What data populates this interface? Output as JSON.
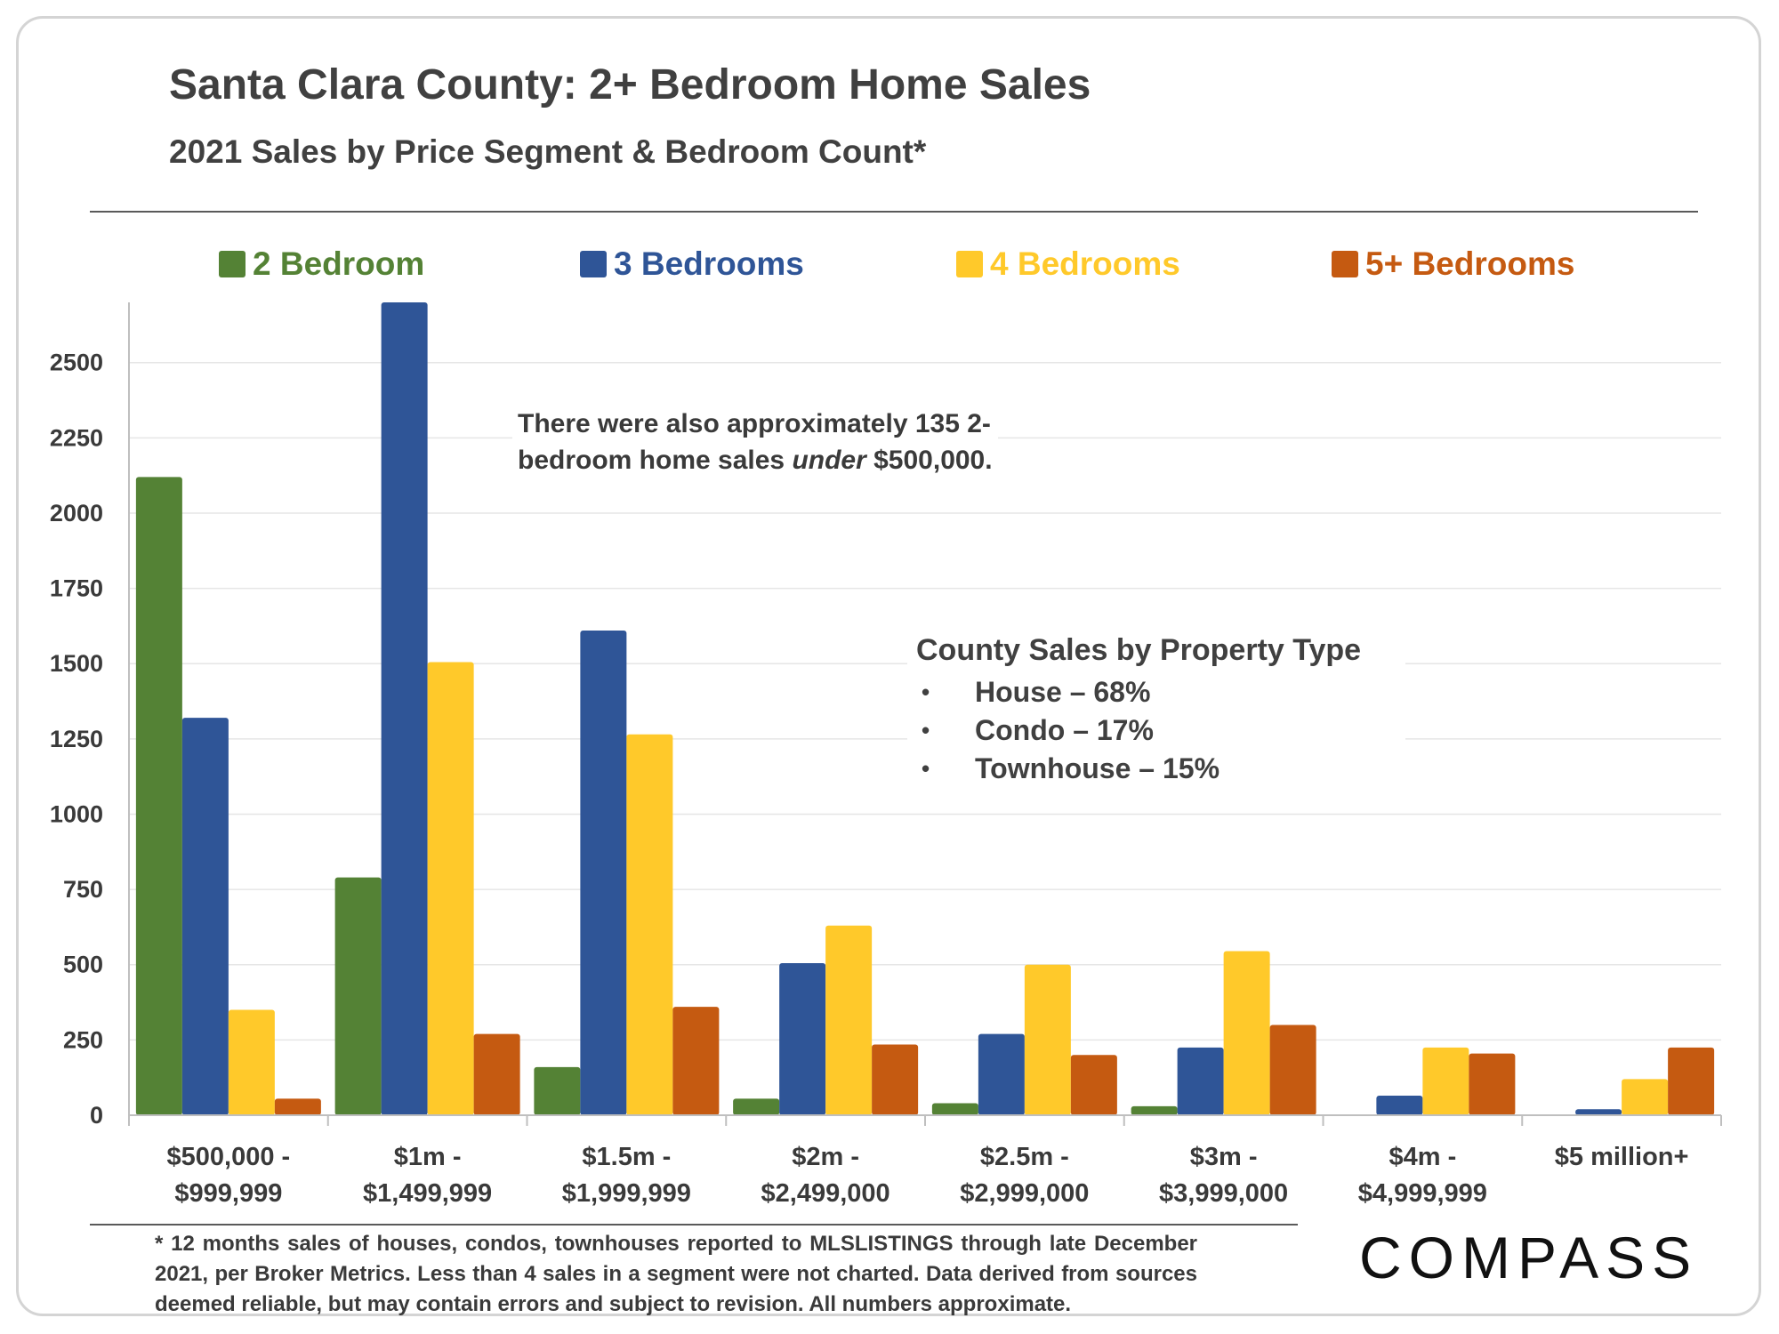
{
  "header": {
    "title": "Santa Clara County: 2+ Bedroom Home Sales",
    "subtitle": "2021 Sales by Price Segment & Bedroom Count*"
  },
  "chart_data": {
    "type": "bar",
    "title": "Santa Clara County: 2+ Bedroom Home Sales",
    "subtitle": "2021 Sales by Price Segment & Bedroom Count*",
    "categories": [
      [
        "$500,000 -",
        "$999,999"
      ],
      [
        "$1m -",
        "$1,499,999"
      ],
      [
        "$1.5m -",
        "$1,999,999"
      ],
      [
        "$2m -",
        "$2,499,000"
      ],
      [
        "$2.5m -",
        "$2,999,000"
      ],
      [
        "$3m -",
        "$3,999,000"
      ],
      [
        "$4m -",
        "$4,999,999"
      ],
      [
        "$5 million+"
      ]
    ],
    "series": [
      {
        "name": "2 Bedroom",
        "color": "#548235",
        "values": [
          2120,
          790,
          160,
          55,
          40,
          30,
          null,
          null
        ]
      },
      {
        "name": "3 Bedrooms",
        "color": "#2f5597",
        "values": [
          1320,
          2700,
          1610,
          505,
          270,
          225,
          65,
          20
        ]
      },
      {
        "name": "4 Bedrooms",
        "color": "#ffc92a",
        "values": [
          350,
          1505,
          1265,
          630,
          500,
          545,
          225,
          120
        ]
      },
      {
        "name": "5+ Bedrooms",
        "color": "#c55a11",
        "values": [
          55,
          270,
          360,
          235,
          200,
          300,
          205,
          225
        ]
      }
    ],
    "yticks": [
      0,
      250,
      500,
      750,
      1000,
      1250,
      1500,
      1750,
      2000,
      2250,
      2500
    ],
    "ylim": [
      0,
      2700
    ],
    "grid": true,
    "legend_position": "top",
    "xlabel": "",
    "ylabel": ""
  },
  "annotations": {
    "note_line1": "There were also approximately 135 2-",
    "note_line2_pre": "bedroom home sales ",
    "note_line2_em": "under",
    "note_line2_post": " $500,000.",
    "property_box": {
      "title": "County Sales by Property Type",
      "items": [
        "House – 68%",
        "Condo – 17%",
        "Townhouse – 15%"
      ]
    }
  },
  "footnote": "* 12 months sales of houses, condos, townhouses reported to MLSLISTINGS through late December 2021, per Broker Metrics. Less than 4 sales in a segment were not charted. Data derived from sources deemed reliable, but may contain errors and subject to revision. All numbers approximate.",
  "logo": "COMPASS"
}
